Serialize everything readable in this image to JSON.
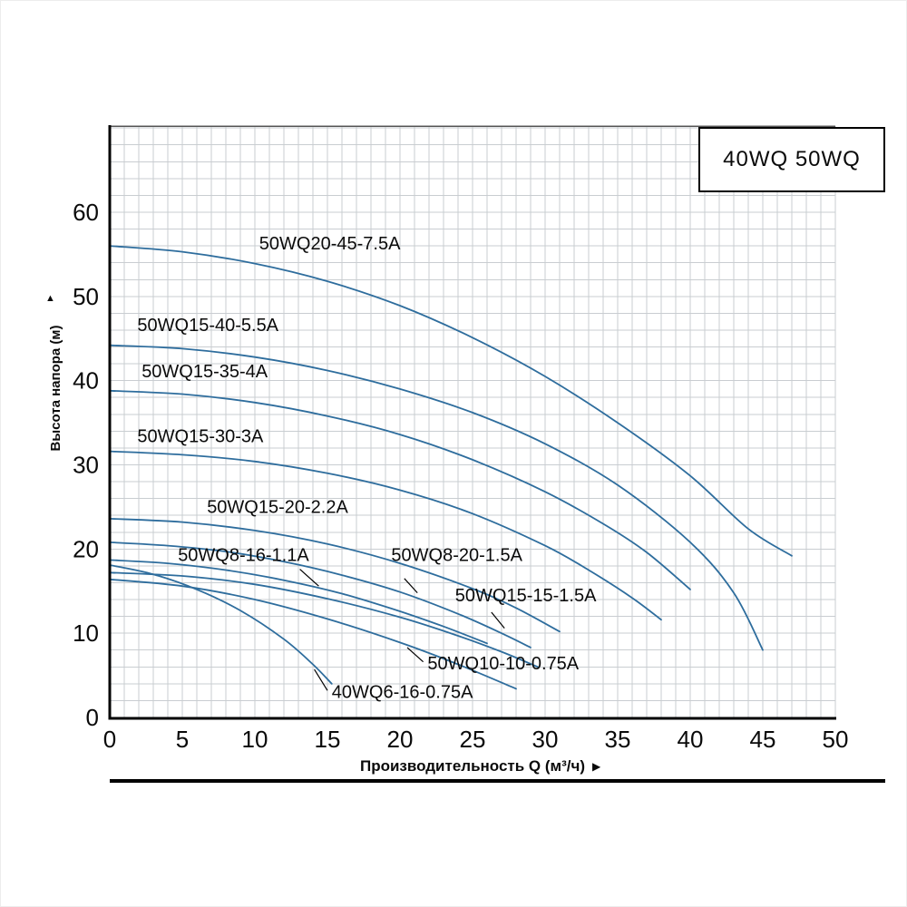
{
  "legend": {
    "label": "40WQ 50WQ"
  },
  "icons": {
    "x_axis_arrow": "▶",
    "y_axis_arrow": "▲"
  },
  "chart_data": {
    "type": "line",
    "title": "",
    "xlabel": "Производительность Q (м³/ч)",
    "ylabel": "Высота напора (м)",
    "legend_label": "40WQ 50WQ",
    "xlim": [
      0,
      50
    ],
    "ylim": [
      0,
      60
    ],
    "x_ticks": [
      0,
      5,
      10,
      15,
      20,
      25,
      30,
      35,
      40,
      45,
      50
    ],
    "y_ticks": [
      0,
      10,
      20,
      30,
      40,
      50,
      60
    ],
    "grid": {
      "x_step": 1,
      "y_step": 2,
      "color": "#c9cdd1",
      "on": true
    },
    "curve_color": "#2e6d9d",
    "legend_position": "top-right",
    "series": [
      {
        "name": "50WQ20-45-7.5A",
        "label": {
          "x": 10.3,
          "y": 55.6
        },
        "leader": null,
        "points": [
          [
            0,
            56
          ],
          [
            5,
            55.3
          ],
          [
            10,
            53.9
          ],
          [
            15,
            51.8
          ],
          [
            20,
            48.9
          ],
          [
            25,
            45.1
          ],
          [
            30,
            40.5
          ],
          [
            35,
            35
          ],
          [
            40,
            28.7
          ],
          [
            44,
            22.4
          ],
          [
            47,
            19.2
          ]
        ]
      },
      {
        "name": "50WQ15-40-5.5A",
        "label": {
          "x": 1.9,
          "y": 45.9
        },
        "leader": null,
        "points": [
          [
            0,
            44.2
          ],
          [
            5,
            43.8
          ],
          [
            10,
            42.8
          ],
          [
            15,
            41.2
          ],
          [
            20,
            39
          ],
          [
            25,
            36.2
          ],
          [
            30,
            32.5
          ],
          [
            35,
            27.6
          ],
          [
            40,
            20.8
          ],
          [
            43,
            14.8
          ],
          [
            45,
            8
          ]
        ]
      },
      {
        "name": "50WQ15-35-4A",
        "label": {
          "x": 2.2,
          "y": 40.4
        },
        "leader": null,
        "points": [
          [
            0,
            38.8
          ],
          [
            5,
            38.4
          ],
          [
            10,
            37.4
          ],
          [
            15,
            35.8
          ],
          [
            20,
            33.6
          ],
          [
            25,
            30.6
          ],
          [
            30,
            26.8
          ],
          [
            34,
            23
          ],
          [
            37,
            19.6
          ],
          [
            40,
            15.2
          ]
        ]
      },
      {
        "name": "50WQ15-30-3A",
        "label": {
          "x": 1.9,
          "y": 32.7
        },
        "leader": null,
        "points": [
          [
            0,
            31.6
          ],
          [
            5,
            31.2
          ],
          [
            10,
            30.4
          ],
          [
            15,
            29
          ],
          [
            20,
            27
          ],
          [
            25,
            24.2
          ],
          [
            30,
            20.4
          ],
          [
            33,
            17.5
          ],
          [
            36,
            14.2
          ],
          [
            38,
            11.6
          ]
        ]
      },
      {
        "name": "50WQ15-20-2.2A",
        "label": {
          "x": 6.7,
          "y": 24.3
        },
        "leader": null,
        "points": [
          [
            0,
            23.6
          ],
          [
            5,
            23.2
          ],
          [
            10,
            22.2
          ],
          [
            15,
            20.6
          ],
          [
            20,
            18.3
          ],
          [
            25,
            15.3
          ],
          [
            28,
            13
          ],
          [
            31,
            10.2
          ]
        ]
      },
      {
        "name": "50WQ8-20-1.5A",
        "label": {
          "x": 19.4,
          "y": 18.6
        },
        "leader": [
          20.3,
          16.5,
          21.2,
          14.8
        ],
        "points": [
          [
            0,
            20.8
          ],
          [
            4,
            20.4
          ],
          [
            8,
            19.7
          ],
          [
            12,
            18.5
          ],
          [
            16,
            16.9
          ],
          [
            20,
            14.9
          ],
          [
            24,
            12.3
          ],
          [
            27,
            10
          ],
          [
            29,
            8.3
          ]
        ]
      },
      {
        "name": "50WQ8-16-1.1A",
        "label": {
          "x": 4.7,
          "y": 18.6
        },
        "leader": [
          13.1,
          17.6,
          14.4,
          15.6
        ],
        "points": [
          [
            0,
            18.7
          ],
          [
            4,
            18.3
          ],
          [
            8,
            17.5
          ],
          [
            12,
            16.3
          ],
          [
            16,
            14.7
          ],
          [
            20,
            12.6
          ],
          [
            23,
            10.8
          ],
          [
            26,
            8.8
          ]
        ]
      },
      {
        "name": "50WQ15-15-1.5A",
        "label": {
          "x": 23.8,
          "y": 13.8
        },
        "leader": [
          26.3,
          12.5,
          27.2,
          10.6
        ],
        "points": [
          [
            0,
            17.2
          ],
          [
            5,
            16.8
          ],
          [
            10,
            15.8
          ],
          [
            15,
            14.1
          ],
          [
            20,
            11.9
          ],
          [
            24,
            9.7
          ],
          [
            27,
            7.8
          ],
          [
            29.5,
            6
          ]
        ]
      },
      {
        "name": "50WQ10-10-0.75A",
        "label": {
          "x": 21.9,
          "y": 5.7
        },
        "leader": [
          21.6,
          6.6,
          20.5,
          8.3
        ],
        "points": [
          [
            0,
            16.4
          ],
          [
            5,
            15.6
          ],
          [
            10,
            14
          ],
          [
            15,
            11.7
          ],
          [
            20,
            8.9
          ],
          [
            24,
            6.3
          ],
          [
            28,
            3.4
          ]
        ]
      },
      {
        "name": "40WQ6-16-0.75A",
        "label": {
          "x": 15.3,
          "y": 2.3
        },
        "leader": [
          15.0,
          3.2,
          14.1,
          5.7
        ],
        "points": [
          [
            0,
            18.1
          ],
          [
            3,
            17
          ],
          [
            6,
            15.2
          ],
          [
            9,
            12.7
          ],
          [
            12,
            9.3
          ],
          [
            14,
            6.3
          ],
          [
            15.3,
            4
          ]
        ]
      }
    ]
  }
}
